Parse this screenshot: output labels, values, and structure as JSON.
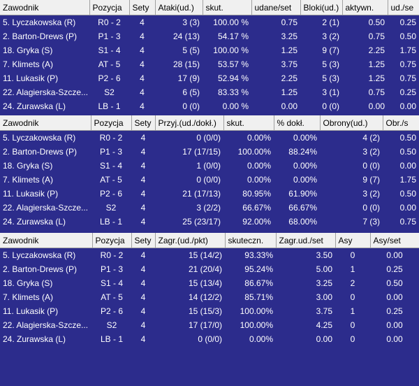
{
  "tables": [
    {
      "columns": [
        "Zawodnik",
        "Pozycja",
        "Sety",
        "Ataki(ud.)",
        "skut.",
        "udane/set",
        "Bloki(ud.)",
        "aktywn.",
        "ud./se"
      ],
      "rows": [
        [
          "5. Lyczakowska (R)",
          "R0 - 2",
          "4",
          "3 (3)",
          "100.00 %",
          "0.75",
          "2 (1)",
          "0.50",
          "0.25"
        ],
        [
          "2. Barton-Drews (P)",
          "P1 - 3",
          "4",
          "24 (13)",
          "54.17 %",
          "3.25",
          "3 (2)",
          "0.75",
          "0.50"
        ],
        [
          "18. Gryka (S)",
          "S1 - 4",
          "4",
          "5 (5)",
          "100.00 %",
          "1.25",
          "9 (7)",
          "2.25",
          "1.75"
        ],
        [
          "7. Klimets (A)",
          "AT - 5",
          "4",
          "28 (15)",
          "53.57 %",
          "3.75",
          "5 (3)",
          "1.25",
          "0.75"
        ],
        [
          "11. Lukasik (P)",
          "P2 - 6",
          "4",
          "17 (9)",
          "52.94 %",
          "2.25",
          "5 (3)",
          "1.25",
          "0.75"
        ],
        [
          "22. Alagierska-Szcze...",
          "S2",
          "4",
          "6 (5)",
          "83.33 %",
          "1.25",
          "3 (1)",
          "0.75",
          "0.25"
        ],
        [
          "24. Zurawska (L)",
          "LB - 1",
          "4",
          "0 (0)",
          "0.00 %",
          "0.00",
          "0 (0)",
          "0.00",
          "0.00"
        ]
      ]
    },
    {
      "columns": [
        "Zawodnik",
        "Pozycja",
        "Sety",
        "Przyj.(ud./dokł.)",
        "skut.",
        "% dokł.",
        "Obrony(ud.)",
        "Obr./s"
      ],
      "rows": [
        [
          "5. Lyczakowska (R)",
          "R0 - 2",
          "4",
          "0 (0/0)",
          "0.00%",
          "0.00%",
          "4 (2)",
          "0.50"
        ],
        [
          "2. Barton-Drews (P)",
          "P1 - 3",
          "4",
          "17 (17/15)",
          "100.00%",
          "88.24%",
          "3 (2)",
          "0.50"
        ],
        [
          "18. Gryka (S)",
          "S1 - 4",
          "4",
          "1 (0/0)",
          "0.00%",
          "0.00%",
          "0 (0)",
          "0.00"
        ],
        [
          "7. Klimets (A)",
          "AT - 5",
          "4",
          "0 (0/0)",
          "0.00%",
          "0.00%",
          "9 (7)",
          "1.75"
        ],
        [
          "11. Lukasik (P)",
          "P2 - 6",
          "4",
          "21 (17/13)",
          "80.95%",
          "61.90%",
          "3 (2)",
          "0.50"
        ],
        [
          "22. Alagierska-Szcze...",
          "S2",
          "4",
          "3 (2/2)",
          "66.67%",
          "66.67%",
          "0 (0)",
          "0.00"
        ],
        [
          "24. Zurawska (L)",
          "LB - 1",
          "4",
          "25 (23/17)",
          "92.00%",
          "68.00%",
          "7 (3)",
          "0.75"
        ]
      ]
    },
    {
      "columns": [
        "Zawodnik",
        "Pozycja",
        "Sety",
        "Zagr.(ud./pkt)",
        "skuteczn.",
        "Zagr.ud./set",
        "Asy",
        "Asy/set"
      ],
      "rows": [
        [
          "5. Lyczakowska (R)",
          "R0 - 2",
          "4",
          "15 (14/2)",
          "93.33%",
          "3.50",
          "0",
          "0.00"
        ],
        [
          "2. Barton-Drews (P)",
          "P1 - 3",
          "4",
          "21 (20/4)",
          "95.24%",
          "5.00",
          "1",
          "0.25"
        ],
        [
          "18. Gryka (S)",
          "S1 - 4",
          "4",
          "15 (13/4)",
          "86.67%",
          "3.25",
          "2",
          "0.50"
        ],
        [
          "7. Klimets (A)",
          "AT - 5",
          "4",
          "14 (12/2)",
          "85.71%",
          "3.00",
          "0",
          "0.00"
        ],
        [
          "11. Lukasik (P)",
          "P2 - 6",
          "4",
          "15 (15/3)",
          "100.00%",
          "3.75",
          "1",
          "0.25"
        ],
        [
          "22. Alagierska-Szcze...",
          "S2",
          "4",
          "17 (17/0)",
          "100.00%",
          "4.25",
          "0",
          "0.00"
        ],
        [
          "24. Zurawska (L)",
          "LB - 1",
          "4",
          "0 (0/0)",
          "0.00%",
          "0.00",
          "0",
          "0.00"
        ]
      ]
    }
  ]
}
